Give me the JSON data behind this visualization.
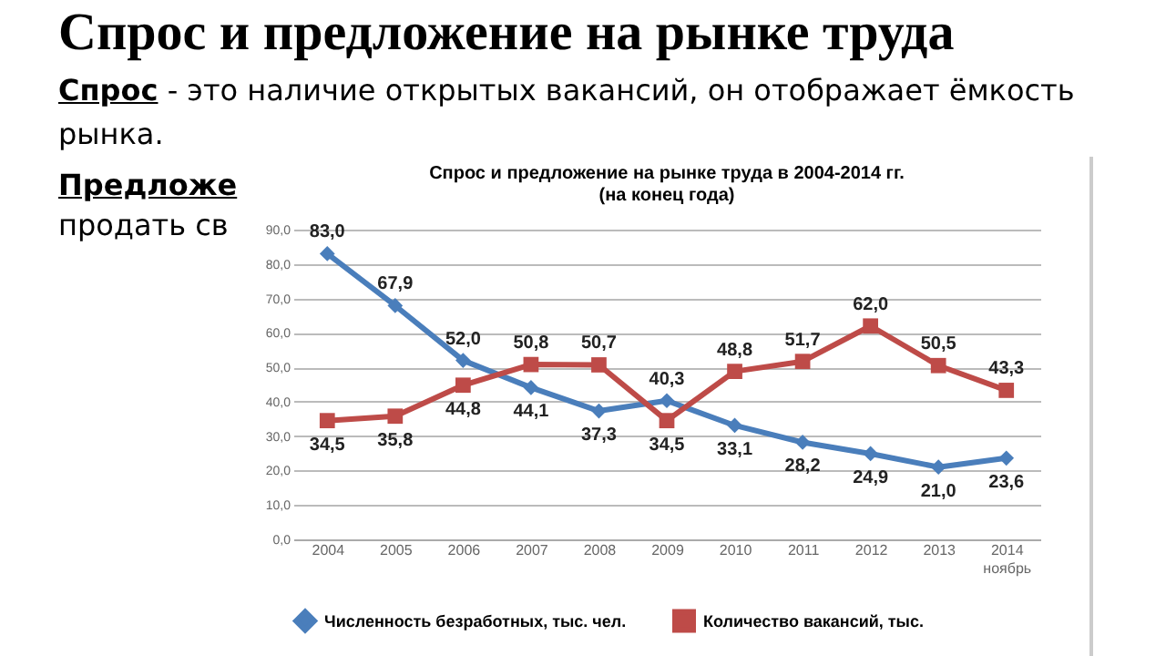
{
  "chart_data": {
    "type": "line",
    "title": "Спрос и предложение на рынке труда",
    "subtitle": "Спрос и предложение на рынке труда в 2004-2014 гг.\n(на конец года)",
    "annotations": [
      "Спрос - это наличие открытых вакансий, он отображает ёмкость рынка.",
      "Предложе",
      "продать св"
    ],
    "categories": [
      "2004",
      "2005",
      "2006",
      "2007",
      "2008",
      "2009",
      "2010",
      "2011",
      "2012",
      "2013",
      "2014\nноябрь"
    ],
    "series": [
      {
        "name": "Численность безработных, тыс. чел.",
        "color": "#4a7ebb",
        "marker": "diamond",
        "values": [
          83.0,
          67.9,
          52.0,
          44.1,
          37.3,
          40.3,
          33.1,
          28.2,
          24.9,
          21.0,
          23.6
        ],
        "value_labels": [
          "83,0",
          "67,9",
          "52,0",
          "44,1",
          "37,3",
          "40,3",
          "33,1",
          "28,2",
          "24,9",
          "21,0",
          "23,6"
        ]
      },
      {
        "name": "Количество вакансий, тыс.",
        "color": "#be4b48",
        "marker": "square",
        "values": [
          34.5,
          35.8,
          44.8,
          50.8,
          50.7,
          34.5,
          48.8,
          51.7,
          62.0,
          50.5,
          43.3
        ],
        "value_labels": [
          "34,5",
          "35,8",
          "44,8",
          "50,8",
          "50,7",
          "34,5",
          "48,8",
          "51,7",
          "62,0",
          "50,5",
          "43,3"
        ]
      }
    ],
    "ylim": [
      0,
      90
    ],
    "yticks": [
      {
        "value": 0,
        "label": "0,0"
      },
      {
        "value": 10,
        "label": "10,0"
      },
      {
        "value": 20,
        "label": "20,0"
      },
      {
        "value": 30,
        "label": "30,0"
      },
      {
        "value": 40,
        "label": "40,0"
      },
      {
        "value": 50,
        "label": "50,0"
      },
      {
        "value": 60,
        "label": "60,0"
      },
      {
        "value": 70,
        "label": "70,0"
      },
      {
        "value": 80,
        "label": "80,0"
      },
      {
        "value": 90,
        "label": "90,0"
      }
    ],
    "grid": "y",
    "legend": "bottom",
    "line_style": "solid"
  }
}
